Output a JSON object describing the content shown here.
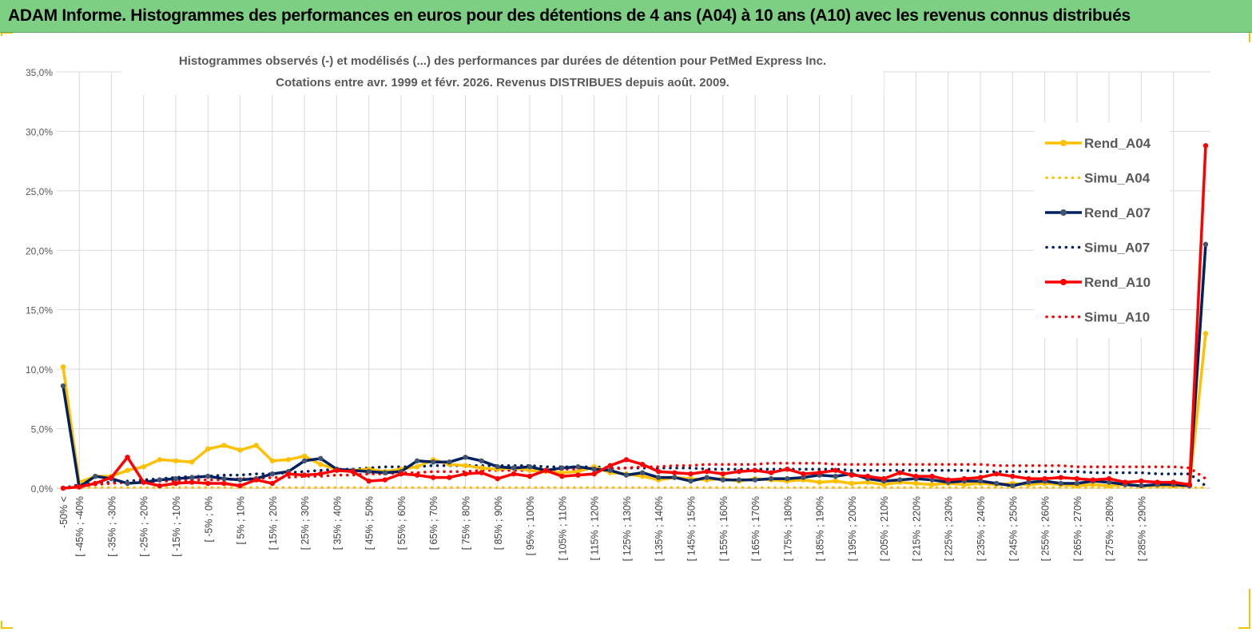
{
  "banner": {
    "title": "ADAM Informe. Histogrammes des performances en euros pour des détentions de 4 ans (A04) à 10 ans (A10) avec les revenus connus distribués"
  },
  "colors": {
    "banner_bg": "#7dcf84",
    "A04": "#ffc000",
    "A07": "#002060",
    "A10": "#ff0000",
    "A07_marker": "#44546a"
  },
  "chart_data": {
    "type": "line",
    "title": "Histogrammes observés (-) et modélisés (...) des performances par durées de détention pour PetMed Express Inc.",
    "subtitle": "Cotations entre avr. 1999 et févr. 2026. Revenus DISTRIBUES depuis août. 2009.",
    "ylim": [
      0,
      35
    ],
    "yticks": [
      "0,0%",
      "5,0%",
      "10,0%",
      "15,0%",
      "20,0%",
      "25,0%",
      "30,0%",
      "35,0%"
    ],
    "categories_labeled": [
      "-50% <",
      "[ -45% ; -40%",
      "[ -35% ; -30%",
      "[ -25% ; -20%",
      "[ -15% ; -10%",
      "[ -5% ; 0%",
      "[ 5% ; 10%",
      "[ 15% ; 20%",
      "[ 25% ; 30%",
      "[ 35% ; 40%",
      "[ 45% ; 50%",
      "[ 55% ; 60%",
      "[ 65% ; 70%",
      "[ 75% ; 80%",
      "[ 85% ; 90%",
      "[ 95% ; 100%",
      "[ 105% ; 110%",
      "[ 115% ; 120%",
      "[ 125% ; 130%",
      "[ 135% ; 140%",
      "[ 145% ; 150%",
      "[ 155% ; 160%",
      "[ 165% ; 170%",
      "[ 175% ; 180%",
      "[ 185% ; 190%",
      "[ 195% ; 200%",
      "[ 205% ; 210%",
      "[ 215% ; 220%",
      "[ 225% ; 230%",
      "[ 235% ; 240%",
      "[ 245% ; 250%",
      "[ 255% ; 260%",
      "[ 265% ; 270%",
      "[ 275% ; 280%",
      "[ 285% ; 290%"
    ],
    "legend": {
      "position": "right"
    },
    "series": [
      {
        "name": "Rend_A04",
        "style": "solid",
        "values": [
          10.2,
          0.5,
          1.0,
          1.0,
          1.5,
          1.8,
          2.4,
          2.3,
          2.2,
          3.3,
          3.6,
          3.2,
          3.6,
          2.3,
          2.4,
          2.7,
          2.0,
          1.6,
          1.5,
          1.6,
          1.4,
          1.6,
          1.8,
          2.4,
          2.0,
          1.9,
          1.7,
          1.6,
          1.7,
          1.5,
          1.4,
          1.3,
          1.4,
          1.8,
          1.3,
          1.2,
          1.0,
          0.7,
          0.9,
          0.8,
          0.7,
          0.8,
          0.6,
          0.8,
          0.7,
          0.6,
          0.7,
          0.5,
          0.6,
          0.4,
          0.5,
          0.3,
          0.5,
          0.4,
          0.3,
          0.4,
          0.3,
          0.4,
          0.3,
          0.4,
          0.3,
          0.4,
          0.3,
          0.2,
          0.3,
          0.2,
          0.3,
          0.2,
          0.2,
          0.2,
          0.2,
          13.0
        ]
      },
      {
        "name": "Simu_A04",
        "style": "dotted",
        "values": [
          0.0,
          0.05,
          0.05,
          0.05,
          0.05,
          0.05,
          0.05,
          0.05,
          0.05,
          0.05,
          0.05,
          0.05,
          0.05,
          0.05,
          0.05,
          0.05,
          0.05,
          0.05,
          0.05,
          0.05,
          0.05,
          0.05,
          0.05,
          0.05,
          0.05,
          0.05,
          0.05,
          0.05,
          0.05,
          0.05,
          0.05,
          0.05,
          0.05,
          0.05,
          0.05,
          0.05,
          0.05,
          0.05,
          0.05,
          0.05,
          0.05,
          0.05,
          0.05,
          0.05,
          0.05,
          0.05,
          0.05,
          0.05,
          0.05,
          0.05,
          0.05,
          0.05,
          0.05,
          0.05,
          0.05,
          0.05,
          0.05,
          0.05,
          0.05,
          0.05,
          0.05,
          0.05,
          0.05,
          0.05,
          0.05,
          0.05,
          0.05,
          0.05,
          0.05,
          0.05,
          0.05,
          0.05
        ]
      },
      {
        "name": "Rend_A07",
        "style": "solid",
        "values": [
          8.6,
          0.1,
          1.0,
          0.8,
          0.4,
          0.5,
          0.7,
          0.8,
          0.9,
          1.0,
          0.8,
          0.7,
          0.8,
          1.2,
          1.4,
          2.3,
          2.5,
          1.6,
          1.5,
          1.4,
          1.3,
          1.4,
          2.3,
          2.2,
          2.2,
          2.6,
          2.3,
          1.8,
          1.7,
          1.8,
          1.5,
          1.7,
          1.8,
          1.6,
          1.5,
          1.1,
          1.3,
          0.9,
          0.9,
          0.6,
          0.9,
          0.7,
          0.7,
          0.7,
          0.8,
          0.8,
          0.9,
          1.1,
          1.0,
          1.2,
          0.8,
          0.6,
          0.7,
          0.8,
          0.7,
          0.5,
          0.6,
          0.6,
          0.4,
          0.2,
          0.5,
          0.6,
          0.4,
          0.4,
          0.6,
          0.5,
          0.3,
          0.2,
          0.3,
          0.3,
          0.2,
          20.5
        ]
      },
      {
        "name": "Simu_A07",
        "style": "dotted",
        "values": [
          0.0,
          0.3,
          0.4,
          0.5,
          0.6,
          0.7,
          0.8,
          0.9,
          1.0,
          1.0,
          1.1,
          1.1,
          1.2,
          1.2,
          1.3,
          1.4,
          1.5,
          1.6,
          1.6,
          1.7,
          1.8,
          1.8,
          1.8,
          1.9,
          1.9,
          1.9,
          1.9,
          1.9,
          1.9,
          1.9,
          1.8,
          1.8,
          1.8,
          1.8,
          1.7,
          1.7,
          1.7,
          1.7,
          1.7,
          1.7,
          1.6,
          1.6,
          1.6,
          1.6,
          1.6,
          1.6,
          1.6,
          1.6,
          1.6,
          1.5,
          1.5,
          1.5,
          1.5,
          1.5,
          1.5,
          1.5,
          1.5,
          1.4,
          1.4,
          1.4,
          1.4,
          1.4,
          1.4,
          1.4,
          1.3,
          1.3,
          1.3,
          1.3,
          1.2,
          1.2,
          1.2,
          0.2
        ]
      },
      {
        "name": "Rend_A10",
        "style": "solid",
        "values": [
          0.0,
          0.1,
          0.4,
          0.9,
          2.6,
          0.5,
          0.2,
          0.4,
          0.5,
          0.4,
          0.4,
          0.2,
          0.7,
          0.4,
          1.2,
          1.1,
          1.2,
          1.5,
          1.4,
          0.6,
          0.7,
          1.2,
          1.1,
          0.9,
          0.9,
          1.2,
          1.3,
          0.8,
          1.2,
          1.0,
          1.5,
          1.0,
          1.1,
          1.2,
          1.9,
          2.4,
          2.0,
          1.4,
          1.3,
          1.2,
          1.4,
          1.2,
          1.4,
          1.5,
          1.3,
          1.6,
          1.2,
          1.3,
          1.5,
          1.1,
          1.0,
          0.8,
          1.3,
          1.0,
          1.0,
          0.7,
          0.8,
          0.9,
          1.2,
          1.0,
          0.8,
          0.8,
          0.9,
          0.8,
          0.7,
          0.8,
          0.5,
          0.6,
          0.5,
          0.5,
          0.3,
          28.8
        ]
      },
      {
        "name": "Simu_A10",
        "style": "dotted",
        "values": [
          0.0,
          0.2,
          0.3,
          0.4,
          0.5,
          0.5,
          0.6,
          0.6,
          0.7,
          0.7,
          0.7,
          0.8,
          0.8,
          0.9,
          0.9,
          1.0,
          1.0,
          1.1,
          1.1,
          1.2,
          1.2,
          1.3,
          1.3,
          1.4,
          1.4,
          1.4,
          1.5,
          1.5,
          1.5,
          1.5,
          1.5,
          1.6,
          1.6,
          1.6,
          1.6,
          1.7,
          1.8,
          1.8,
          1.9,
          1.9,
          2.0,
          2.0,
          2.0,
          2.0,
          2.1,
          2.1,
          2.1,
          2.1,
          2.0,
          2.0,
          2.0,
          2.0,
          2.0,
          2.0,
          2.0,
          2.0,
          2.0,
          2.0,
          1.9,
          1.9,
          1.9,
          1.9,
          1.9,
          1.8,
          1.8,
          1.8,
          1.8,
          1.8,
          1.8,
          1.8,
          1.7,
          0.8
        ]
      }
    ]
  }
}
